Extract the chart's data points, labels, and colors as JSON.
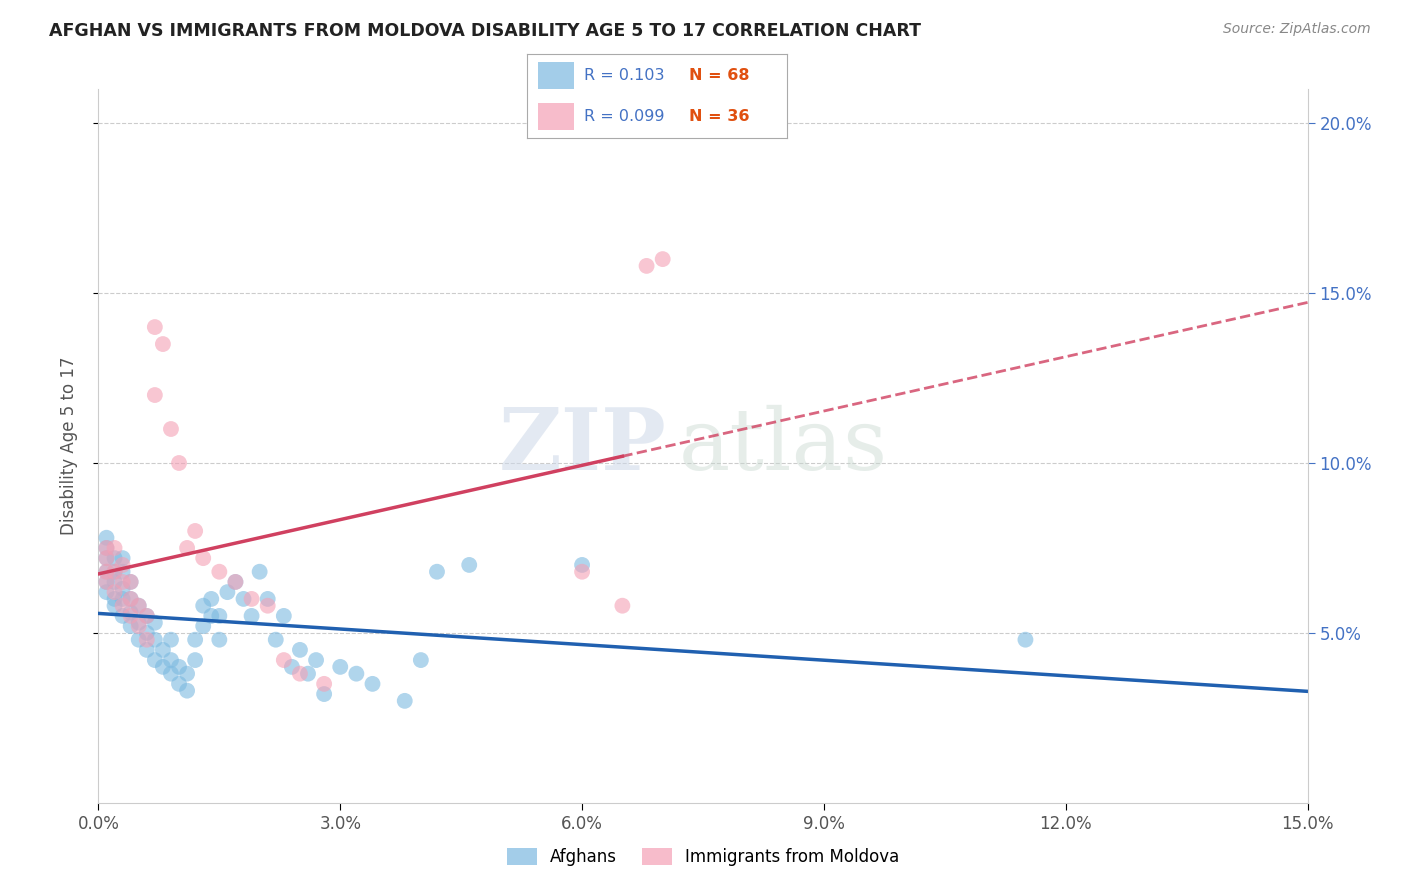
{
  "title": "AFGHAN VS IMMIGRANTS FROM MOLDOVA DISABILITY AGE 5 TO 17 CORRELATION CHART",
  "source": "Source: ZipAtlas.com",
  "ylabel": "Disability Age 5 to 17",
  "xlim": [
    0.0,
    0.15
  ],
  "ylim": [
    0.0,
    0.21
  ],
  "xticks": [
    0.0,
    0.03,
    0.06,
    0.09,
    0.12,
    0.15
  ],
  "xticklabels": [
    "0.0%",
    "3.0%",
    "6.0%",
    "9.0%",
    "12.0%",
    "15.0%"
  ],
  "yticks": [
    0.05,
    0.1,
    0.15,
    0.2
  ],
  "yticklabels": [
    "5.0%",
    "10.0%",
    "15.0%",
    "20.0%"
  ],
  "legend_labels": [
    "Afghans",
    "Immigrants from Moldova"
  ],
  "legend_R": [
    0.103,
    0.099
  ],
  "legend_N": [
    68,
    36
  ],
  "blue_color": "#7cb9e0",
  "pink_color": "#f4a0b5",
  "blue_line_color": "#2060b0",
  "pink_line_color": "#d04060",
  "watermark_zip": "ZIP",
  "watermark_atlas": "atlas",
  "blue_scatter_x": [
    0.001,
    0.001,
    0.001,
    0.001,
    0.001,
    0.001,
    0.002,
    0.002,
    0.002,
    0.002,
    0.002,
    0.003,
    0.003,
    0.003,
    0.003,
    0.003,
    0.004,
    0.004,
    0.004,
    0.004,
    0.005,
    0.005,
    0.005,
    0.006,
    0.006,
    0.006,
    0.007,
    0.007,
    0.007,
    0.008,
    0.008,
    0.009,
    0.009,
    0.009,
    0.01,
    0.01,
    0.011,
    0.011,
    0.012,
    0.012,
    0.013,
    0.013,
    0.014,
    0.014,
    0.015,
    0.015,
    0.016,
    0.017,
    0.018,
    0.019,
    0.02,
    0.021,
    0.022,
    0.023,
    0.024,
    0.025,
    0.026,
    0.027,
    0.028,
    0.03,
    0.032,
    0.034,
    0.038,
    0.04,
    0.042,
    0.046,
    0.06,
    0.115
  ],
  "blue_scatter_y": [
    0.065,
    0.068,
    0.072,
    0.075,
    0.078,
    0.062,
    0.065,
    0.068,
    0.072,
    0.058,
    0.06,
    0.055,
    0.06,
    0.063,
    0.068,
    0.072,
    0.052,
    0.056,
    0.06,
    0.065,
    0.048,
    0.053,
    0.058,
    0.045,
    0.05,
    0.055,
    0.042,
    0.048,
    0.053,
    0.04,
    0.045,
    0.038,
    0.042,
    0.048,
    0.035,
    0.04,
    0.033,
    0.038,
    0.042,
    0.048,
    0.052,
    0.058,
    0.055,
    0.06,
    0.048,
    0.055,
    0.062,
    0.065,
    0.06,
    0.055,
    0.068,
    0.06,
    0.048,
    0.055,
    0.04,
    0.045,
    0.038,
    0.042,
    0.032,
    0.04,
    0.038,
    0.035,
    0.03,
    0.042,
    0.068,
    0.07,
    0.07,
    0.048
  ],
  "pink_scatter_x": [
    0.001,
    0.001,
    0.001,
    0.001,
    0.002,
    0.002,
    0.002,
    0.003,
    0.003,
    0.003,
    0.004,
    0.004,
    0.004,
    0.005,
    0.005,
    0.006,
    0.006,
    0.007,
    0.007,
    0.008,
    0.009,
    0.01,
    0.011,
    0.012,
    0.013,
    0.015,
    0.017,
    0.019,
    0.021,
    0.023,
    0.025,
    0.028,
    0.06,
    0.065,
    0.068,
    0.07
  ],
  "pink_scatter_y": [
    0.065,
    0.068,
    0.072,
    0.075,
    0.062,
    0.068,
    0.075,
    0.058,
    0.065,
    0.07,
    0.055,
    0.06,
    0.065,
    0.052,
    0.058,
    0.048,
    0.055,
    0.12,
    0.14,
    0.135,
    0.11,
    0.1,
    0.075,
    0.08,
    0.072,
    0.068,
    0.065,
    0.06,
    0.058,
    0.042,
    0.038,
    0.035,
    0.068,
    0.058,
    0.158,
    0.16
  ]
}
